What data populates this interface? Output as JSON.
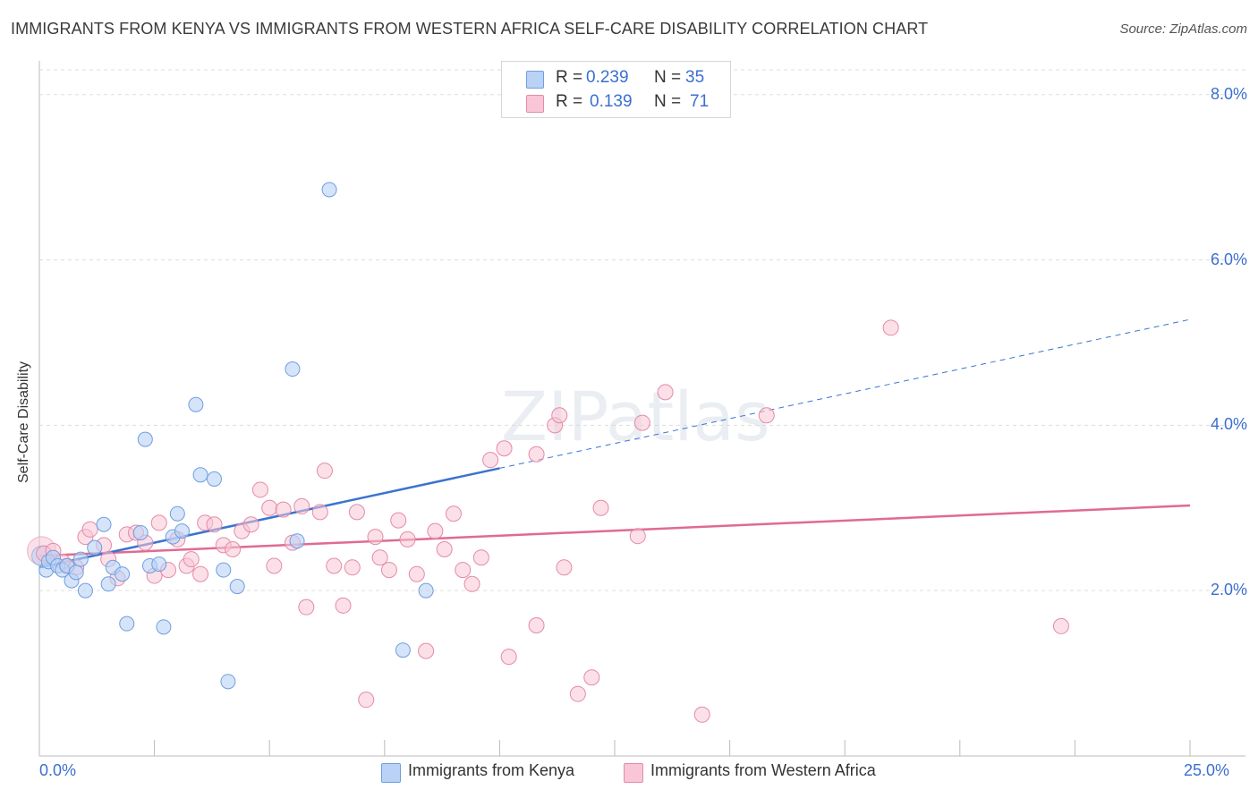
{
  "title": "IMMIGRANTS FROM KENYA VS IMMIGRANTS FROM WESTERN AFRICA SELF-CARE DISABILITY CORRELATION CHART",
  "source": "Source: ZipAtlas.com",
  "watermark": "ZIPatlas",
  "legend": {
    "r_label": "R =",
    "n_label": "N =",
    "kenya": {
      "r": "0.239",
      "n": "35"
    },
    "western_africa": {
      "r": "0.139",
      "n": "71"
    }
  },
  "colors": {
    "kenya_fill": "#b9d2f5",
    "kenya_stroke": "#6f9ee0",
    "kenya_line": "#3a74d0",
    "wa_fill": "#f8c6d6",
    "wa_stroke": "#e58aa8",
    "wa_line": "#e06a93",
    "axis_label": "#3b6fcf"
  },
  "chart_data": {
    "type": "scatter",
    "title": "IMMIGRANTS FROM KENYA VS IMMIGRANTS FROM WESTERN AFRICA SELF-CARE DISABILITY CORRELATION CHART",
    "xlabel": "",
    "ylabel": "Self-Care Disability",
    "xlim": [
      0,
      25
    ],
    "ylim": [
      0,
      8.3
    ],
    "x_tick_labels": [
      "0.0%",
      "25.0%"
    ],
    "y_ticks": [
      2,
      4,
      6,
      8
    ],
    "y_tick_labels": [
      "2.0%",
      "4.0%",
      "6.0%",
      "8.0%"
    ],
    "grid": true,
    "series": [
      {
        "name": "Immigrants from Kenya",
        "points": [
          [
            0.15,
            2.25
          ],
          [
            0.2,
            2.35
          ],
          [
            0.3,
            2.4
          ],
          [
            0.4,
            2.3
          ],
          [
            0.5,
            2.25
          ],
          [
            0.6,
            2.3
          ],
          [
            0.7,
            2.12
          ],
          [
            0.8,
            2.22
          ],
          [
            0.9,
            2.38
          ],
          [
            1.0,
            2.0
          ],
          [
            1.2,
            2.52
          ],
          [
            1.4,
            2.8
          ],
          [
            1.5,
            2.08
          ],
          [
            1.6,
            2.28
          ],
          [
            1.8,
            2.2
          ],
          [
            1.9,
            1.6
          ],
          [
            2.2,
            2.7
          ],
          [
            2.3,
            3.83
          ],
          [
            2.4,
            2.3
          ],
          [
            2.6,
            2.32
          ],
          [
            2.7,
            1.56
          ],
          [
            2.9,
            2.65
          ],
          [
            3.0,
            2.93
          ],
          [
            3.1,
            2.72
          ],
          [
            3.4,
            4.25
          ],
          [
            3.5,
            3.4
          ],
          [
            3.8,
            3.35
          ],
          [
            4.0,
            2.25
          ],
          [
            4.1,
            0.9
          ],
          [
            4.3,
            2.05
          ],
          [
            5.5,
            4.68
          ],
          [
            5.6,
            2.6
          ],
          [
            6.3,
            6.85
          ],
          [
            7.9,
            1.28
          ],
          [
            8.4,
            2.0
          ]
        ]
      },
      {
        "name": "Immigrants from Western Africa",
        "points": [
          [
            0.1,
            2.45
          ],
          [
            0.3,
            2.48
          ],
          [
            0.6,
            2.3
          ],
          [
            0.8,
            2.28
          ],
          [
            1.0,
            2.65
          ],
          [
            1.1,
            2.74
          ],
          [
            1.4,
            2.55
          ],
          [
            1.5,
            2.38
          ],
          [
            1.7,
            2.15
          ],
          [
            1.9,
            2.68
          ],
          [
            2.1,
            2.7
          ],
          [
            2.3,
            2.58
          ],
          [
            2.5,
            2.18
          ],
          [
            2.6,
            2.82
          ],
          [
            2.8,
            2.25
          ],
          [
            3.0,
            2.62
          ],
          [
            3.2,
            2.3
          ],
          [
            3.3,
            2.38
          ],
          [
            3.5,
            2.2
          ],
          [
            3.6,
            2.82
          ],
          [
            3.8,
            2.8
          ],
          [
            4.0,
            2.55
          ],
          [
            4.2,
            2.5
          ],
          [
            4.4,
            2.72
          ],
          [
            4.6,
            2.8
          ],
          [
            4.8,
            3.22
          ],
          [
            5.0,
            3.0
          ],
          [
            5.1,
            2.3
          ],
          [
            5.3,
            2.98
          ],
          [
            5.5,
            2.58
          ],
          [
            5.7,
            3.02
          ],
          [
            5.8,
            1.8
          ],
          [
            6.1,
            2.95
          ],
          [
            6.2,
            3.45
          ],
          [
            6.4,
            2.3
          ],
          [
            6.6,
            1.82
          ],
          [
            6.8,
            2.28
          ],
          [
            6.9,
            2.95
          ],
          [
            7.1,
            0.68
          ],
          [
            7.3,
            2.65
          ],
          [
            7.4,
            2.4
          ],
          [
            7.6,
            2.25
          ],
          [
            7.8,
            2.85
          ],
          [
            8.0,
            2.62
          ],
          [
            8.2,
            2.2
          ],
          [
            8.4,
            1.27
          ],
          [
            8.6,
            2.72
          ],
          [
            8.8,
            2.5
          ],
          [
            9.0,
            2.93
          ],
          [
            9.2,
            2.25
          ],
          [
            9.4,
            2.08
          ],
          [
            9.6,
            2.4
          ],
          [
            9.8,
            3.58
          ],
          [
            10.1,
            3.72
          ],
          [
            10.2,
            1.2
          ],
          [
            10.8,
            1.58
          ],
          [
            10.8,
            3.65
          ],
          [
            11.2,
            4.0
          ],
          [
            11.3,
            4.12
          ],
          [
            11.4,
            2.28
          ],
          [
            11.7,
            0.75
          ],
          [
            12.0,
            0.95
          ],
          [
            12.2,
            3.0
          ],
          [
            13.0,
            2.66
          ],
          [
            13.1,
            4.03
          ],
          [
            13.6,
            4.4
          ],
          [
            14.4,
            0.5
          ],
          [
            15.8,
            4.12
          ],
          [
            18.5,
            5.18
          ],
          [
            22.2,
            1.57
          ],
          [
            0.5,
            2.35
          ]
        ]
      }
    ],
    "trendlines": [
      {
        "series": "Immigrants from Kenya",
        "x": [
          0,
          10.0
        ],
        "y": [
          2.28,
          3.48
        ],
        "dashed_extension_x": [
          10.0,
          25
        ],
        "dashed_extension_y": [
          3.48,
          5.28
        ]
      },
      {
        "series": "Immigrants from Western Africa",
        "x": [
          0,
          25
        ],
        "y": [
          2.42,
          3.03
        ]
      }
    ]
  },
  "bottom_legend": {
    "kenya": "Immigrants from Kenya",
    "western_africa": "Immigrants from Western Africa"
  }
}
